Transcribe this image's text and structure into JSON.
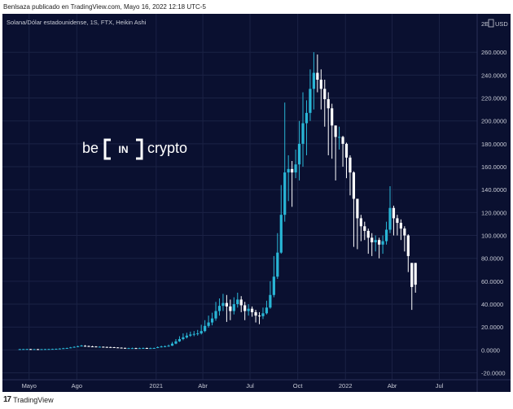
{
  "caption": "Benlsaza publicado en TradingView.com, Mayo 16, 2022 12:18 UTC-5",
  "footer": {
    "logo_glyph": "17",
    "brand": "TradingView"
  },
  "watermark": {
    "left": "be",
    "box": "IN",
    "right": "crypto"
  },
  "colors": {
    "background": "#0a1030",
    "up": "#29b6d6",
    "down": "#ffffff",
    "text": "#c8cbd6",
    "grid": "#1b2245"
  },
  "chart_data": {
    "type": "candlestick",
    "title": "Solana/Dólar estadounidense, 1S, FTX, Heikin Ashi",
    "currency": "USD",
    "ylim": [
      -26,
      285
    ],
    "y_ticks": [
      -20,
      0,
      20,
      40,
      60,
      80,
      100,
      120,
      140,
      160,
      180,
      200,
      220,
      240,
      260
    ],
    "y_tick_labels": [
      "-20.0000",
      "0.0000",
      "20.0000",
      "40.0000",
      "60.0000",
      "80.0000",
      "100.0000",
      "120.0000",
      "140.0000",
      "160.0000",
      "180.0000",
      "200.0000",
      "220.0000",
      "240.0000",
      "260.0000"
    ],
    "y_top_label": "2E",
    "x_ticks": [
      {
        "label": "Mayo",
        "date": "2020-05-01"
      },
      {
        "label": "Ago",
        "date": "2020-08-01"
      },
      {
        "label": "2021",
        "date": "2021-01-01"
      },
      {
        "label": "Abr",
        "date": "2021-04-01"
      },
      {
        "label": "Jul",
        "date": "2021-07-01"
      },
      {
        "label": "Oct",
        "date": "2021-10-01"
      },
      {
        "label": "2022",
        "date": "2022-01-01"
      },
      {
        "label": "Abr",
        "date": "2022-04-01"
      },
      {
        "label": "Jul",
        "date": "2022-07-01"
      }
    ],
    "xlim": [
      "2020-03-20",
      "2022-09-12"
    ],
    "candles": [
      {
        "d": "2020-04-13",
        "o": 0.6,
        "c": 0.7,
        "h": 0.9,
        "l": 0.5
      },
      {
        "d": "2020-04-20",
        "o": 0.65,
        "c": 0.75,
        "h": 0.9,
        "l": 0.55
      },
      {
        "d": "2020-04-27",
        "o": 0.7,
        "c": 0.8,
        "h": 1.0,
        "l": 0.6
      },
      {
        "d": "2020-05-04",
        "o": 0.75,
        "c": 0.7,
        "h": 0.95,
        "l": 0.55
      },
      {
        "d": "2020-05-11",
        "o": 0.7,
        "c": 0.7,
        "h": 0.85,
        "l": 0.55
      },
      {
        "d": "2020-05-18",
        "o": 0.7,
        "c": 0.65,
        "h": 0.8,
        "l": 0.5
      },
      {
        "d": "2020-05-25",
        "o": 0.65,
        "c": 0.7,
        "h": 0.8,
        "l": 0.55
      },
      {
        "d": "2020-06-01",
        "o": 0.7,
        "c": 0.75,
        "h": 0.9,
        "l": 0.6
      },
      {
        "d": "2020-06-08",
        "o": 0.75,
        "c": 0.8,
        "h": 1.0,
        "l": 0.6
      },
      {
        "d": "2020-06-15",
        "o": 0.8,
        "c": 0.9,
        "h": 1.1,
        "l": 0.7
      },
      {
        "d": "2020-06-22",
        "o": 0.9,
        "c": 1.0,
        "h": 1.2,
        "l": 0.8
      },
      {
        "d": "2020-06-29",
        "o": 1.0,
        "c": 1.2,
        "h": 1.5,
        "l": 0.9
      },
      {
        "d": "2020-07-06",
        "o": 1.2,
        "c": 1.5,
        "h": 1.8,
        "l": 1.1
      },
      {
        "d": "2020-07-13",
        "o": 1.5,
        "c": 1.7,
        "h": 2.0,
        "l": 1.3
      },
      {
        "d": "2020-07-20",
        "o": 1.7,
        "c": 2.2,
        "h": 2.6,
        "l": 1.6
      },
      {
        "d": "2020-07-27",
        "o": 2.2,
        "c": 2.7,
        "h": 3.2,
        "l": 2.0
      },
      {
        "d": "2020-08-03",
        "o": 2.7,
        "c": 3.2,
        "h": 3.7,
        "l": 2.5
      },
      {
        "d": "2020-08-10",
        "o": 3.2,
        "c": 3.8,
        "h": 4.4,
        "l": 3.0
      },
      {
        "d": "2020-08-17",
        "o": 3.6,
        "c": 3.4,
        "h": 4.2,
        "l": 3.0
      },
      {
        "d": "2020-08-24",
        "o": 3.4,
        "c": 3.1,
        "h": 3.8,
        "l": 2.7
      },
      {
        "d": "2020-08-31",
        "o": 3.1,
        "c": 3.0,
        "h": 3.6,
        "l": 2.5
      },
      {
        "d": "2020-09-07",
        "o": 3.0,
        "c": 2.8,
        "h": 3.3,
        "l": 2.4
      },
      {
        "d": "2020-09-14",
        "o": 2.8,
        "c": 2.8,
        "h": 3.2,
        "l": 2.4
      },
      {
        "d": "2020-09-21",
        "o": 2.8,
        "c": 2.6,
        "h": 3.0,
        "l": 2.2
      },
      {
        "d": "2020-09-28",
        "o": 2.6,
        "c": 2.5,
        "h": 2.9,
        "l": 2.1
      },
      {
        "d": "2020-10-05",
        "o": 2.5,
        "c": 2.4,
        "h": 2.8,
        "l": 2.0
      },
      {
        "d": "2020-10-12",
        "o": 2.4,
        "c": 2.2,
        "h": 2.6,
        "l": 1.9
      },
      {
        "d": "2020-10-19",
        "o": 2.2,
        "c": 2.0,
        "h": 2.4,
        "l": 1.7
      },
      {
        "d": "2020-10-26",
        "o": 2.0,
        "c": 1.8,
        "h": 2.2,
        "l": 1.5
      },
      {
        "d": "2020-11-02",
        "o": 1.8,
        "c": 1.6,
        "h": 2.0,
        "l": 1.3
      },
      {
        "d": "2020-11-09",
        "o": 1.6,
        "c": 1.6,
        "h": 1.9,
        "l": 1.3
      },
      {
        "d": "2020-11-16",
        "o": 1.6,
        "c": 1.6,
        "h": 2.0,
        "l": 1.3
      },
      {
        "d": "2020-11-23",
        "o": 1.6,
        "c": 1.5,
        "h": 1.9,
        "l": 1.2
      },
      {
        "d": "2020-11-30",
        "o": 1.5,
        "c": 1.6,
        "h": 2.0,
        "l": 1.3
      },
      {
        "d": "2020-12-07",
        "o": 1.6,
        "c": 1.7,
        "h": 2.1,
        "l": 1.4
      },
      {
        "d": "2020-12-14",
        "o": 1.7,
        "c": 1.6,
        "h": 2.0,
        "l": 1.3
      },
      {
        "d": "2020-12-21",
        "o": 1.6,
        "c": 1.6,
        "h": 2.0,
        "l": 1.3
      },
      {
        "d": "2020-12-28",
        "o": 1.6,
        "c": 1.7,
        "h": 2.0,
        "l": 1.4
      },
      {
        "d": "2021-01-04",
        "o": 1.7,
        "c": 2.4,
        "h": 3.1,
        "l": 1.6
      },
      {
        "d": "2021-01-11",
        "o": 2.4,
        "c": 3.0,
        "h": 3.7,
        "l": 2.2
      },
      {
        "d": "2021-01-18",
        "o": 3.0,
        "c": 3.2,
        "h": 3.9,
        "l": 2.6
      },
      {
        "d": "2021-01-25",
        "o": 3.2,
        "c": 3.7,
        "h": 4.7,
        "l": 2.8
      },
      {
        "d": "2021-02-01",
        "o": 3.7,
        "c": 5.5,
        "h": 7.0,
        "l": 3.5
      },
      {
        "d": "2021-02-08",
        "o": 5.5,
        "c": 7.5,
        "h": 9.5,
        "l": 5.0
      },
      {
        "d": "2021-02-15",
        "o": 7.5,
        "c": 9.5,
        "h": 12.0,
        "l": 7.0
      },
      {
        "d": "2021-02-22",
        "o": 9.5,
        "c": 11.0,
        "h": 14.5,
        "l": 8.5
      },
      {
        "d": "2021-03-01",
        "o": 11.0,
        "c": 12.5,
        "h": 15.0,
        "l": 10.0
      },
      {
        "d": "2021-03-08",
        "o": 12.5,
        "c": 13.5,
        "h": 16.0,
        "l": 11.5
      },
      {
        "d": "2021-03-15",
        "o": 13.5,
        "c": 14.0,
        "h": 16.5,
        "l": 12.0
      },
      {
        "d": "2021-03-22",
        "o": 14.0,
        "c": 14.5,
        "h": 17.5,
        "l": 12.5
      },
      {
        "d": "2021-03-29",
        "o": 14.5,
        "c": 16.5,
        "h": 22.0,
        "l": 13.5
      },
      {
        "d": "2021-04-05",
        "o": 16.5,
        "c": 21.0,
        "h": 26.0,
        "l": 15.5
      },
      {
        "d": "2021-04-12",
        "o": 21.0,
        "c": 24.0,
        "h": 30.0,
        "l": 19.5
      },
      {
        "d": "2021-04-19",
        "o": 24.0,
        "c": 27.5,
        "h": 32.5,
        "l": 21.5
      },
      {
        "d": "2021-04-26",
        "o": 27.5,
        "c": 34.0,
        "h": 42.0,
        "l": 25.5
      },
      {
        "d": "2021-05-03",
        "o": 34.0,
        "c": 38.5,
        "h": 45.0,
        "l": 30.0
      },
      {
        "d": "2021-05-10",
        "o": 38.5,
        "c": 41.0,
        "h": 49.0,
        "l": 34.0
      },
      {
        "d": "2021-05-17",
        "o": 41.0,
        "c": 38.0,
        "h": 48.0,
        "l": 24.5
      },
      {
        "d": "2021-05-24",
        "o": 38.0,
        "c": 34.0,
        "h": 44.0,
        "l": 26.0
      },
      {
        "d": "2021-05-31",
        "o": 34.0,
        "c": 40.0,
        "h": 46.0,
        "l": 31.0
      },
      {
        "d": "2021-06-07",
        "o": 40.0,
        "c": 44.0,
        "h": 50.0,
        "l": 37.0
      },
      {
        "d": "2021-06-14",
        "o": 44.0,
        "c": 39.0,
        "h": 47.0,
        "l": 33.0
      },
      {
        "d": "2021-06-21",
        "o": 39.0,
        "c": 34.0,
        "h": 42.0,
        "l": 26.0
      },
      {
        "d": "2021-06-28",
        "o": 34.0,
        "c": 36.0,
        "h": 40.0,
        "l": 30.0
      },
      {
        "d": "2021-07-05",
        "o": 36.0,
        "c": 33.0,
        "h": 38.0,
        "l": 29.0
      },
      {
        "d": "2021-07-12",
        "o": 33.0,
        "c": 30.0,
        "h": 35.0,
        "l": 24.0
      },
      {
        "d": "2021-07-19",
        "o": 30.0,
        "c": 29.5,
        "h": 33.0,
        "l": 22.5
      },
      {
        "d": "2021-07-26",
        "o": 29.5,
        "c": 32.0,
        "h": 37.0,
        "l": 27.0
      },
      {
        "d": "2021-08-02",
        "o": 32.0,
        "c": 37.0,
        "h": 43.0,
        "l": 31.0
      },
      {
        "d": "2021-08-09",
        "o": 37.0,
        "c": 48.0,
        "h": 60.0,
        "l": 36.0
      },
      {
        "d": "2021-08-16",
        "o": 48.0,
        "c": 64.0,
        "h": 82.0,
        "l": 46.0
      },
      {
        "d": "2021-08-23",
        "o": 64.0,
        "c": 85.0,
        "h": 102.0,
        "l": 62.0
      },
      {
        "d": "2021-08-30",
        "o": 85.0,
        "c": 118.0,
        "h": 144.0,
        "l": 84.0
      },
      {
        "d": "2021-09-06",
        "o": 118.0,
        "c": 155.0,
        "h": 216.0,
        "l": 112.0
      },
      {
        "d": "2021-09-13",
        "o": 155.0,
        "c": 158.0,
        "h": 170.0,
        "l": 130.0
      },
      {
        "d": "2021-09-20",
        "o": 158.0,
        "c": 155.0,
        "h": 165.0,
        "l": 125.0
      },
      {
        "d": "2021-09-27",
        "o": 155.0,
        "c": 162.0,
        "h": 175.0,
        "l": 150.0
      },
      {
        "d": "2021-10-04",
        "o": 162.0,
        "c": 180.0,
        "h": 200.0,
        "l": 148.0
      },
      {
        "d": "2021-10-11",
        "o": 180.0,
        "c": 198.0,
        "h": 225.0,
        "l": 160.0
      },
      {
        "d": "2021-10-18",
        "o": 198.0,
        "c": 207.0,
        "h": 218.0,
        "l": 170.0
      },
      {
        "d": "2021-10-25",
        "o": 207.0,
        "c": 228.0,
        "h": 245.0,
        "l": 200.0
      },
      {
        "d": "2021-11-01",
        "o": 228.0,
        "c": 242.0,
        "h": 260.0,
        "l": 210.0
      },
      {
        "d": "2021-11-08",
        "o": 242.0,
        "c": 236.0,
        "h": 258.0,
        "l": 225.0
      },
      {
        "d": "2021-11-15",
        "o": 236.0,
        "c": 228.0,
        "h": 245.0,
        "l": 210.0
      },
      {
        "d": "2021-11-22",
        "o": 228.0,
        "c": 219.0,
        "h": 236.0,
        "l": 195.0
      },
      {
        "d": "2021-11-29",
        "o": 219.0,
        "c": 211.0,
        "h": 225.0,
        "l": 170.0
      },
      {
        "d": "2021-12-06",
        "o": 211.0,
        "c": 196.0,
        "h": 215.0,
        "l": 167.0
      },
      {
        "d": "2021-12-13",
        "o": 196.0,
        "c": 186.0,
        "h": 196.0,
        "l": 148.0
      },
      {
        "d": "2021-12-20",
        "o": 186.0,
        "c": 186.0,
        "h": 195.0,
        "l": 175.0
      },
      {
        "d": "2021-12-27",
        "o": 186.0,
        "c": 180.0,
        "h": 187.0,
        "l": 160.0
      },
      {
        "d": "2022-01-03",
        "o": 180.0,
        "c": 168.0,
        "h": 181.0,
        "l": 150.0
      },
      {
        "d": "2022-01-10",
        "o": 168.0,
        "c": 155.0,
        "h": 170.0,
        "l": 135.0
      },
      {
        "d": "2022-01-17",
        "o": 155.0,
        "c": 132.0,
        "h": 156.0,
        "l": 90.0
      },
      {
        "d": "2022-01-24",
        "o": 132.0,
        "c": 115.0,
        "h": 132.0,
        "l": 88.0
      },
      {
        "d": "2022-01-31",
        "o": 115.0,
        "c": 108.0,
        "h": 118.0,
        "l": 95.0
      },
      {
        "d": "2022-02-07",
        "o": 108.0,
        "c": 104.0,
        "h": 112.0,
        "l": 96.0
      },
      {
        "d": "2022-02-14",
        "o": 104.0,
        "c": 98.0,
        "h": 106.0,
        "l": 84.0
      },
      {
        "d": "2022-02-21",
        "o": 98.0,
        "c": 94.0,
        "h": 102.0,
        "l": 82.0
      },
      {
        "d": "2022-02-28",
        "o": 94.0,
        "c": 96.0,
        "h": 100.0,
        "l": 86.0
      },
      {
        "d": "2022-03-07",
        "o": 96.0,
        "c": 92.0,
        "h": 98.0,
        "l": 80.0
      },
      {
        "d": "2022-03-14",
        "o": 92.0,
        "c": 95.0,
        "h": 100.0,
        "l": 84.0
      },
      {
        "d": "2022-03-21",
        "o": 95.0,
        "c": 105.0,
        "h": 112.0,
        "l": 92.0
      },
      {
        "d": "2022-03-28",
        "o": 105.0,
        "c": 124.0,
        "h": 143.0,
        "l": 102.0
      },
      {
        "d": "2022-04-04",
        "o": 124.0,
        "c": 115.0,
        "h": 126.0,
        "l": 100.0
      },
      {
        "d": "2022-04-11",
        "o": 115.0,
        "c": 111.0,
        "h": 118.0,
        "l": 100.0
      },
      {
        "d": "2022-04-18",
        "o": 111.0,
        "c": 106.0,
        "h": 114.0,
        "l": 96.0
      },
      {
        "d": "2022-04-25",
        "o": 106.0,
        "c": 100.0,
        "h": 108.0,
        "l": 86.0
      },
      {
        "d": "2022-05-02",
        "o": 100.0,
        "c": 82.0,
        "h": 101.0,
        "l": 68.0
      },
      {
        "d": "2022-05-09",
        "o": 76.0,
        "c": 55.0,
        "h": 76.0,
        "l": 35.0
      },
      {
        "d": "2022-05-16",
        "o": 76.0,
        "c": 57.0,
        "h": 76.0,
        "l": 50.0
      }
    ]
  }
}
